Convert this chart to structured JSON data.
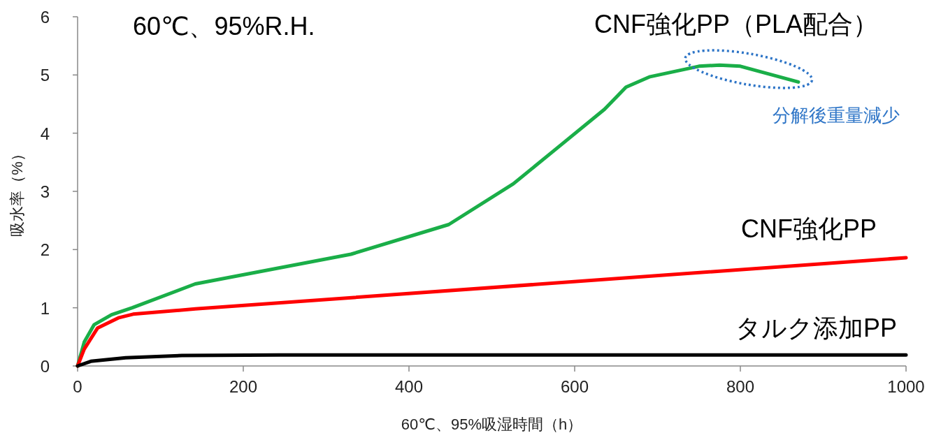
{
  "chart_data": {
    "type": "line",
    "xlabel": "60℃、95%吸湿時間（h）",
    "ylabel": "吸水率（%）",
    "xlim": [
      0,
      1000
    ],
    "xticks": [
      0,
      200,
      400,
      600,
      800,
      1000
    ],
    "ylim": [
      0,
      6
    ],
    "yticks": [
      0,
      1,
      2,
      3,
      4,
      5,
      6
    ],
    "grid": false,
    "legend": false,
    "marker": "none",
    "line_style": "solid",
    "series": [
      {
        "name": "CNF強化PP（PLA配合）",
        "color": "#1aae48",
        "x": [
          0,
          8,
          20,
          41,
          66,
          142,
          330,
          448,
          526,
          581,
          636,
          662,
          691,
          750,
          775,
          800,
          870
        ],
        "values": [
          0,
          0.41,
          0.71,
          0.88,
          1.0,
          1.41,
          1.92,
          2.43,
          3.13,
          3.77,
          4.41,
          4.79,
          4.97,
          5.15,
          5.17,
          5.15,
          4.88
        ]
      },
      {
        "name": "CNF強化PP",
        "color": "#ff0000",
        "x": [
          0,
          8,
          24,
          50,
          67,
          142,
          1000
        ],
        "values": [
          0,
          0.29,
          0.65,
          0.83,
          0.89,
          0.98,
          1.86
        ]
      },
      {
        "name": "タルク添加PP",
        "color": "#000000",
        "x": [
          0,
          16,
          58,
          126,
          244,
          1000
        ],
        "values": [
          0,
          0.08,
          0.14,
          0.18,
          0.19,
          0.19
        ]
      }
    ],
    "annotations": [
      "60℃、95%R.H.",
      {
        "text": "分解後重量減少",
        "x": 810,
        "y": 5.1
      }
    ]
  }
}
